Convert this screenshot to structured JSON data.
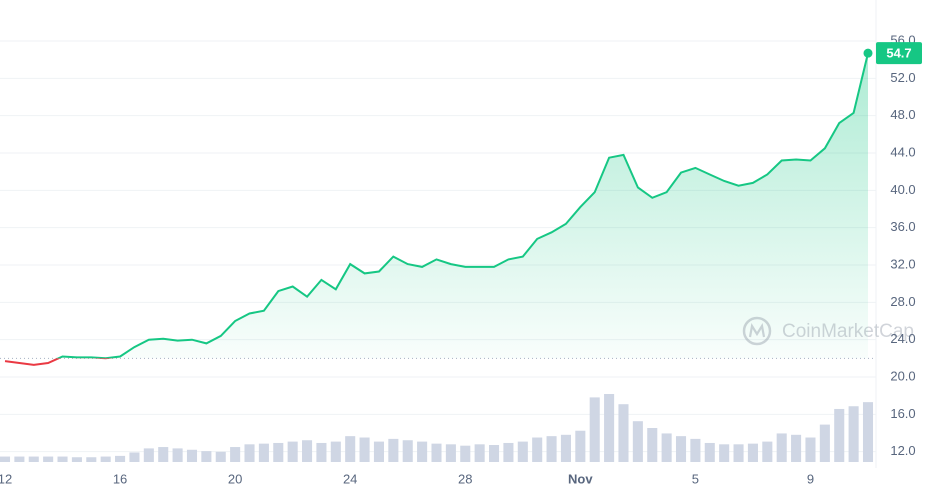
{
  "chart_data": {
    "type": "line",
    "categories": [
      "12",
      null,
      null,
      null,
      null,
      null,
      null,
      null,
      "16",
      null,
      null,
      null,
      null,
      null,
      null,
      null,
      "20",
      null,
      null,
      null,
      null,
      null,
      null,
      null,
      "24",
      null,
      null,
      null,
      null,
      null,
      null,
      null,
      "28",
      null,
      null,
      null,
      null,
      null,
      null,
      null,
      "Nov",
      null,
      null,
      null,
      null,
      null,
      null,
      null,
      "5",
      null,
      null,
      null,
      null,
      null,
      null,
      null,
      "9",
      null,
      null,
      null,
      null
    ],
    "series": [
      {
        "color": "#16c784",
        "down_color": "#ea3943",
        "values": [
          21.7,
          21.5,
          21.3,
          21.5,
          22.2,
          22.1,
          22.1,
          22.0,
          22.2,
          23.2,
          24.0,
          24.1,
          23.9,
          24.0,
          23.6,
          24.4,
          26.0,
          26.8,
          27.1,
          29.2,
          29.7,
          28.6,
          30.4,
          29.4,
          32.1,
          31.1,
          31.3,
          32.9,
          32.1,
          31.8,
          32.6,
          32.1,
          31.8,
          31.8,
          31.8,
          32.6,
          32.9,
          34.8,
          35.5,
          36.4,
          38.2,
          39.8,
          43.5,
          43.8,
          40.3,
          39.2,
          39.8,
          41.9,
          42.4,
          41.7,
          41.0,
          40.5,
          40.8,
          41.7,
          43.2,
          43.3,
          43.2,
          44.5,
          47.2,
          48.3,
          54.7
        ]
      },
      {
        "axis": "y2",
        "color": "#cfd6e4",
        "values": [
          8,
          8,
          8,
          8,
          8,
          7,
          7,
          8,
          9,
          14,
          20,
          22,
          20,
          18,
          16,
          15,
          22,
          26,
          27,
          28,
          30,
          32,
          28,
          30,
          38,
          36,
          30,
          34,
          32,
          30,
          27,
          26,
          24,
          26,
          25,
          28,
          30,
          36,
          38,
          40,
          46,
          95,
          100,
          85,
          60,
          50,
          42,
          38,
          34,
          28,
          26,
          26,
          27,
          30,
          42,
          40,
          36,
          55,
          78,
          82,
          88
        ]
      }
    ],
    "baseline": 22.0,
    "ylim": [
      11,
      57.5
    ],
    "yticks": [
      {
        "value": 12,
        "label": "12.0"
      },
      {
        "value": 16,
        "label": "16.0"
      },
      {
        "value": 20,
        "label": "20.0"
      },
      {
        "value": 24,
        "label": "24.0"
      },
      {
        "value": 28,
        "label": "28.0"
      },
      {
        "value": 32,
        "label": "32.0"
      },
      {
        "value": 36,
        "label": "36.0"
      },
      {
        "value": 40,
        "label": "40.0"
      },
      {
        "value": 44,
        "label": "44.0"
      },
      {
        "value": 48,
        "label": "48.0"
      },
      {
        "value": 52,
        "label": "52.0"
      },
      {
        "value": 56,
        "label": "56.0"
      }
    ],
    "y2lim": [
      0,
      100
    ],
    "grid": true,
    "watermark": "CoinMarketCap"
  }
}
